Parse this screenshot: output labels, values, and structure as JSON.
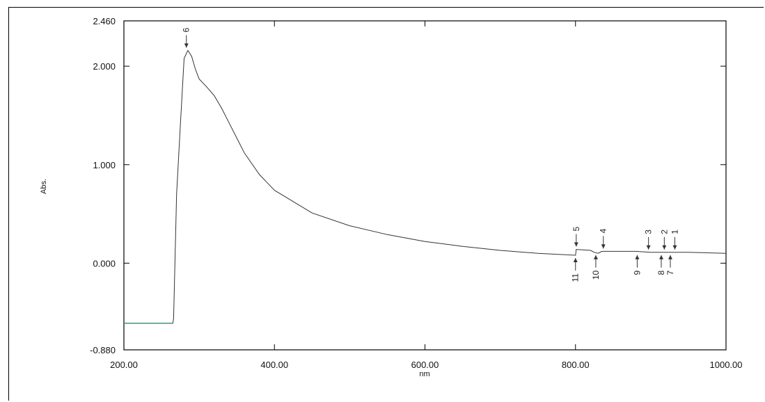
{
  "chart_data": {
    "type": "line",
    "title": "",
    "xlabel": "nm",
    "ylabel": "Abs.",
    "xlim": [
      200,
      1000
    ],
    "ylim": [
      -0.88,
      2.46
    ],
    "x_tick_labels": [
      {
        "value": 200,
        "label": "200.00"
      },
      {
        "value": 400,
        "label": "400.00"
      },
      {
        "value": 600,
        "label": "600.00"
      },
      {
        "value": 800,
        "label": "800.00"
      },
      {
        "value": 1000,
        "label": "1000.00"
      }
    ],
    "y_tick_labels": [
      {
        "value": 2.46,
        "label": "2.460"
      },
      {
        "value": 2.0,
        "label": "2.000"
      },
      {
        "value": 1.0,
        "label": "1.000"
      },
      {
        "value": 0.0,
        "label": "0.000"
      },
      {
        "value": -0.88,
        "label": "-0.880"
      }
    ],
    "grid": false,
    "series": [
      {
        "x": [
          200,
          265,
          266,
          270,
          275,
          280,
          285,
          290,
          295,
          300,
          310,
          320,
          330,
          340,
          350,
          360,
          380,
          400,
          450,
          500,
          550,
          600,
          650,
          700,
          750,
          800,
          801,
          820,
          825,
          830,
          835,
          880,
          900,
          925,
          950,
          1000
        ],
        "y": [
          -0.61,
          -0.61,
          -0.56,
          0.7,
          1.4,
          2.08,
          2.16,
          2.1,
          1.97,
          1.87,
          1.79,
          1.7,
          1.57,
          1.42,
          1.27,
          1.12,
          0.9,
          0.74,
          0.51,
          0.38,
          0.29,
          0.22,
          0.17,
          0.13,
          0.1,
          0.08,
          0.14,
          0.13,
          0.11,
          0.1,
          0.12,
          0.12,
          0.11,
          0.11,
          0.11,
          0.1
        ]
      }
    ],
    "peak_markers": [
      {
        "label": "6",
        "x": 283,
        "y": 2.16,
        "side": "above"
      },
      {
        "label": "5",
        "x": 801,
        "y": 0.14,
        "side": "above"
      },
      {
        "label": "4",
        "x": 837,
        "y": 0.12,
        "side": "above"
      },
      {
        "label": "3",
        "x": 897,
        "y": 0.11,
        "side": "above"
      },
      {
        "label": "2",
        "x": 918,
        "y": 0.11,
        "side": "above"
      },
      {
        "label": "1",
        "x": 932,
        "y": 0.11,
        "side": "above"
      },
      {
        "label": "11",
        "x": 800,
        "y": 0.08,
        "side": "below"
      },
      {
        "label": "10",
        "x": 827,
        "y": 0.11,
        "side": "below"
      },
      {
        "label": "9",
        "x": 882,
        "y": 0.11,
        "side": "below"
      },
      {
        "label": "8",
        "x": 914,
        "y": 0.11,
        "side": "below"
      },
      {
        "label": "7",
        "x": 926,
        "y": 0.11,
        "side": "below"
      }
    ]
  }
}
